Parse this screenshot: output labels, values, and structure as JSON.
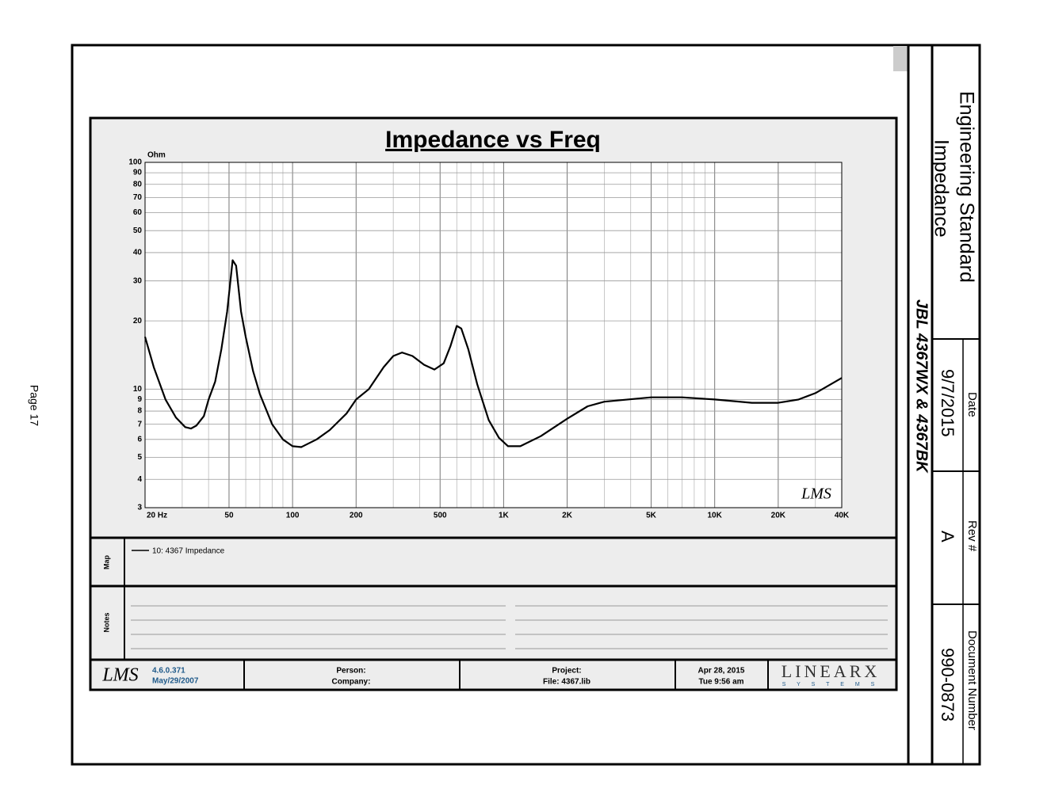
{
  "chart_data": {
    "type": "line",
    "title": "Impedance vs Freq",
    "y_unit": "Ohm",
    "xscale": "log",
    "yscale": "log",
    "grid": true,
    "xlim": [
      20,
      40000
    ],
    "ylim": [
      3,
      100
    ],
    "xticks": [
      {
        "value": 20,
        "label": "20  Hz"
      },
      50,
      100,
      200,
      500,
      {
        "value": 1000,
        "label": "1K"
      },
      {
        "value": 2000,
        "label": "2K"
      },
      {
        "value": 5000,
        "label": "5K"
      },
      {
        "value": 10000,
        "label": "10K"
      },
      {
        "value": 20000,
        "label": "20K"
      },
      {
        "value": 40000,
        "label": "40K"
      }
    ],
    "xgrid_minor": [
      30,
      40,
      60,
      70,
      80,
      90,
      300,
      400,
      600,
      700,
      800,
      900,
      3000,
      4000,
      6000,
      7000,
      8000,
      9000,
      30000
    ],
    "yticks": [
      3,
      4,
      5,
      6,
      7,
      8,
      9,
      10,
      20,
      30,
      40,
      50,
      60,
      70,
      80,
      90,
      100
    ],
    "x": [
      20,
      22,
      25,
      28,
      31,
      33,
      35,
      38,
      40,
      43,
      46,
      49,
      52,
      54,
      57,
      60,
      65,
      70,
      80,
      90,
      100,
      110,
      130,
      150,
      180,
      200,
      230,
      270,
      300,
      330,
      370,
      420,
      470,
      520,
      560,
      600,
      630,
      680,
      750,
      850,
      950,
      1050,
      1200,
      1500,
      2000,
      2500,
      3000,
      5000,
      7000,
      10000,
      15000,
      20000,
      25000,
      30000,
      40000
    ],
    "series": [
      {
        "name": "10: 4367 Impedance",
        "color": "#000000",
        "values": [
          17,
          12.5,
          9,
          7.5,
          6.8,
          6.7,
          6.9,
          7.6,
          9,
          10.8,
          15,
          22,
          37,
          35,
          22,
          17,
          12,
          9.5,
          7,
          6,
          5.6,
          5.55,
          6,
          6.6,
          7.8,
          9,
          10,
          12.5,
          14,
          14.5,
          14,
          12.8,
          12.2,
          13,
          15.5,
          19,
          18.5,
          15,
          10.5,
          7.3,
          6.1,
          5.6,
          5.6,
          6.2,
          7.4,
          8.4,
          8.8,
          9.2,
          9.2,
          9,
          8.7,
          8.7,
          9,
          9.6,
          11.2
        ]
      }
    ]
  },
  "watermark": "LMS",
  "map_label": "Map",
  "notes_label": "Notes",
  "footer": {
    "logo": "LMS",
    "version": "4.6.0.371",
    "version_date": "May/29/2007",
    "person": "Person:",
    "company": "Company:",
    "project": "Project:",
    "file": "File: 4367.lib",
    "date": "Apr 28, 2015",
    "time": "Tue  9:56 am",
    "brand": "LINEARX",
    "brand_sub": "S Y S T E M S"
  },
  "title_block": {
    "title": "Engineering Standard",
    "subtitle": "Impedance",
    "product": "JBL 4367WX & 4367BK",
    "date_label": "Date",
    "date": "9/7/2015",
    "rev_label": "Rev #",
    "rev": "A",
    "doc_label": "Document Number",
    "doc": "990-0873"
  },
  "page": "Page 17"
}
